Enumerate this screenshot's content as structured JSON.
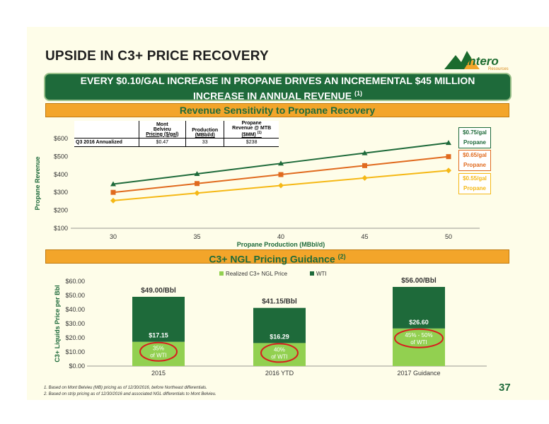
{
  "title": "UPSIDE IN C3+ PRICE RECOVERY",
  "logo": {
    "name": "Antero",
    "sub": "Resources"
  },
  "banner": {
    "line1": "EVERY $0.10/GAL INCREASE IN PROPANE DRIVES AN INCREMENTAL $45 MILLION",
    "line2": "INCREASE IN ANNUAL REVENUE",
    "sup": "(1)"
  },
  "section1": {
    "title": "Revenue Sensitivity to Propane Recovery"
  },
  "section2": {
    "title": "C3+ NGL Pricing Guidance",
    "sup": "(2)"
  },
  "table": {
    "headers": [
      {
        "line1": "Mont",
        "line2": "Belvieu",
        "line3": "Pricing ($/gal)"
      },
      {
        "line1": "",
        "line2": "Production",
        "line3": "(MBbl/d)"
      },
      {
        "line1": "Propane",
        "line2": "Revenue @ MTB",
        "line3": "($MM)",
        "sup": "(1)"
      }
    ],
    "row_label": "Q3 2016 Annualized",
    "row_values": [
      "$0.47",
      "33",
      "$238"
    ]
  },
  "colors": {
    "green": "#1e6a3a",
    "orange": "#e06a1e",
    "yellow": "#f5b815",
    "lightgreen": "#92d050",
    "darkgreen": "#1e6a3a"
  },
  "chart_data": [
    {
      "type": "line",
      "x": [
        30,
        35,
        40,
        45,
        50
      ],
      "xlabel": "Propane Production (MBbl/d)",
      "ylabel": "Propane Revenue",
      "ylim": [
        100,
        600
      ],
      "yticks": [
        "$100",
        "$200",
        "$300",
        "$400",
        "$500",
        "$600"
      ],
      "xticks": [
        "30",
        "35",
        "40",
        "45",
        "50"
      ],
      "series": [
        {
          "name": "$0.75/gal Propane",
          "label1": "$0.75/gal",
          "label2": "Propane",
          "color": "#1e6a3a",
          "marker": "triangle",
          "values": [
            346,
            403,
            461,
            519,
            576
          ]
        },
        {
          "name": "$0.65/gal Propane",
          "label1": "$0.65/gal",
          "label2": "Propane",
          "color": "#e06a1e",
          "marker": "square",
          "values": [
            300,
            349,
            399,
            449,
            499
          ]
        },
        {
          "name": "$0.55/gal Propane",
          "label1": "$0.55/gal",
          "label2": "Propane",
          "color": "#f5b815",
          "marker": "diamond",
          "values": [
            254,
            296,
            338,
            380,
            422
          ]
        }
      ]
    },
    {
      "type": "bar",
      "stacked": true,
      "categories": [
        "2015",
        "2016 YTD",
        "2017 Guidance"
      ],
      "ylabel": "C3+ Liquids Price per Bbl",
      "ylim": [
        0,
        60
      ],
      "yticks": [
        "$0.00",
        "$10.00",
        "$20.00",
        "$30.00",
        "$40.00",
        "$50.00",
        "$60.00"
      ],
      "legend": [
        "Realized C3+ NGL Price",
        "WTI"
      ],
      "series": [
        {
          "name": "Realized C3+ NGL Price",
          "color": "#92d050",
          "values": [
            17.15,
            16.29,
            26.6
          ]
        },
        {
          "name": "WTI",
          "color": "#1e6a3a",
          "values": [
            31.85,
            24.86,
            29.4
          ]
        }
      ],
      "totals": [
        "$49.00/Bbl",
        "$41.15/Bbl",
        "$56.00/Bbl"
      ],
      "ngl_labels": [
        "$17.15",
        "$16.29",
        "$26.60"
      ],
      "pct_labels": [
        {
          "line1": "35%",
          "line2": "of WTI"
        },
        {
          "line1": "40%",
          "line2": "of WTI"
        },
        {
          "line1": "45% - 50%",
          "line2": "of WTI"
        }
      ]
    }
  ],
  "footnotes": [
    "1.  Based on Mont Belvieu (MB) pricing as of 12/30/2016, before Northeast differentials.",
    "2.  Based on strip pricing as of 12/30/2016 and associated NGL differentials to Mont Belvieu."
  ],
  "page_number": "37"
}
